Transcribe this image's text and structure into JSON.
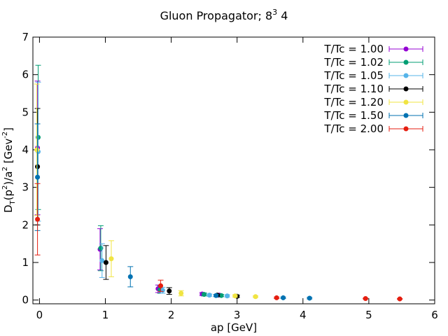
{
  "chart_data": {
    "type": "scatter",
    "title": "Gluon Propagator; 8",
    "title_sup": "3",
    "title_suffix": " 4",
    "xlabel": "ap [GeV]",
    "ylabel_parts": {
      "d": "D",
      "t": "T",
      "p": "(p",
      "two": "2",
      "mid": ")/a",
      "two2": "2",
      "unit": " [Gev",
      "neg2": "-2",
      "close": "]"
    },
    "xlim": [
      -0.1,
      6
    ],
    "ylim": [
      -0.1,
      7
    ],
    "xticks": [
      0,
      1,
      2,
      3,
      4,
      5,
      6
    ],
    "yticks": [
      0,
      1,
      2,
      3,
      4,
      5,
      6,
      7
    ],
    "legend_position": "top-right",
    "series": [
      {
        "name": "T/Tc = 1.00",
        "color": "#9400d3",
        "points": [
          {
            "x": -0.03,
            "y": 4.05,
            "err": 1.78
          },
          {
            "x": 0.92,
            "y": 1.35,
            "err": 0.55
          },
          {
            "x": 1.8,
            "y": 0.3,
            "err": 0.1
          },
          {
            "x": 2.47,
            "y": 0.16,
            "err": 0.04
          },
          {
            "x": 2.73,
            "y": 0.13,
            "err": 0.03
          }
        ]
      },
      {
        "name": "T/Tc = 1.02",
        "color": "#009e73",
        "points": [
          {
            "x": -0.02,
            "y": 4.33,
            "err": 1.92
          },
          {
            "x": 0.93,
            "y": 1.38,
            "err": 0.6
          },
          {
            "x": 1.83,
            "y": 0.28,
            "err": 0.1
          },
          {
            "x": 2.5,
            "y": 0.15,
            "err": 0.04
          },
          {
            "x": 2.76,
            "y": 0.12,
            "err": 0.03
          }
        ]
      },
      {
        "name": "T/Tc = 1.05",
        "color": "#56b4e9",
        "points": [
          {
            "x": -0.02,
            "y": 3.95,
            "err": 1.85
          },
          {
            "x": 0.95,
            "y": 1.05,
            "err": 0.45
          },
          {
            "x": 1.87,
            "y": 0.26,
            "err": 0.08
          },
          {
            "x": 2.58,
            "y": 0.13,
            "err": 0.03
          },
          {
            "x": 2.85,
            "y": 0.11,
            "err": 0.03
          }
        ]
      },
      {
        "name": "T/Tc = 1.10",
        "color": "#000000",
        "points": [
          {
            "x": -0.03,
            "y": 3.55,
            "err": 1.55
          },
          {
            "x": 1.01,
            "y": 1.0,
            "err": 0.45
          },
          {
            "x": 1.97,
            "y": 0.24,
            "err": 0.09
          },
          {
            "x": 2.7,
            "y": 0.13,
            "err": 0.03
          },
          {
            "x": 3.0,
            "y": 0.1,
            "err": 0.03
          }
        ]
      },
      {
        "name": "T/Tc = 1.20",
        "color": "#f0e442",
        "points": [
          {
            "x": -0.04,
            "y": 4.0,
            "err": 1.75
          },
          {
            "x": 1.09,
            "y": 1.1,
            "err": 0.48
          },
          {
            "x": 2.15,
            "y": 0.18,
            "err": 0.07
          },
          {
            "x": 2.97,
            "y": 0.11,
            "err": 0.03
          },
          {
            "x": 3.28,
            "y": 0.09,
            "err": 0.02
          }
        ]
      },
      {
        "name": "T/Tc = 1.50",
        "color": "#0072b2",
        "points": [
          {
            "x": -0.03,
            "y": 3.27,
            "err": 1.42
          },
          {
            "x": 1.38,
            "y": 0.62,
            "err": 0.27
          },
          {
            "x": 2.68,
            "y": 0.12,
            "err": 0.03
          },
          {
            "x": 3.7,
            "y": 0.06,
            "err": 0.02
          },
          {
            "x": 4.1,
            "y": 0.05,
            "err": 0.02
          }
        ]
      },
      {
        "name": "T/Tc = 2.00",
        "color": "#e51e10",
        "points": [
          {
            "x": -0.03,
            "y": 2.15,
            "err": 0.95
          },
          {
            "x": 1.84,
            "y": 0.38,
            "err": 0.15
          },
          {
            "x": 3.6,
            "y": 0.06,
            "err": 0.02
          },
          {
            "x": 4.95,
            "y": 0.04,
            "err": 0.01
          },
          {
            "x": 5.47,
            "y": 0.03,
            "err": 0.01
          }
        ]
      }
    ]
  }
}
